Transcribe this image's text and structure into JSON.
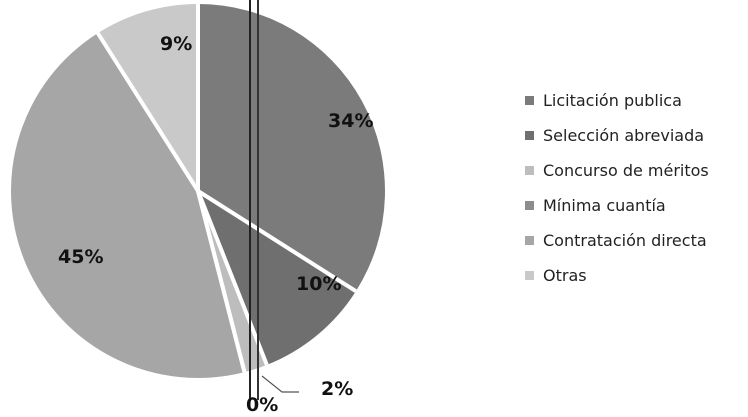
{
  "chart_data": {
    "type": "pie",
    "categories": [
      "Licitación publica",
      "Selección abreviada",
      "Concurso de méritos",
      "Mínima cuantía",
      "Contratación directa",
      "Otras"
    ],
    "values": [
      34,
      10,
      2,
      0,
      45,
      9
    ],
    "labels": [
      "34%",
      "10%",
      "2%",
      "0%",
      "45%",
      "9%"
    ],
    "colors": [
      "#7b7b7b",
      "#6f6f6f",
      "#bdbdbd",
      "#8c8c8c",
      "#a6a6a6",
      "#c9c9c9"
    ],
    "legend_position": "right",
    "title": ""
  }
}
